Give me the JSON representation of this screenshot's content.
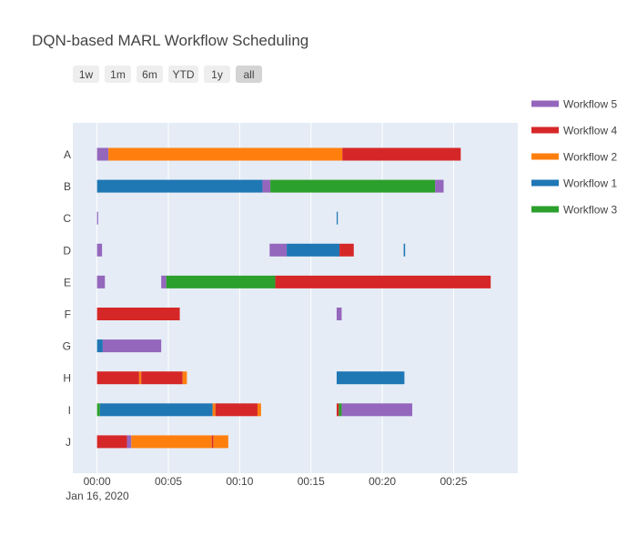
{
  "chart_data": {
    "type": "gantt",
    "title": "DQN-based MARL Workflow Scheduling",
    "date_label": "Jan 16, 2020",
    "x_unit": "minutes after 00:00 on Jan 16, 2020",
    "xlim": [
      -1.7,
      29.5
    ],
    "x_ticks": [
      {
        "value": 0,
        "label": "00:00"
      },
      {
        "value": 5,
        "label": "00:05"
      },
      {
        "value": 10,
        "label": "00:10"
      },
      {
        "value": 15,
        "label": "00:15"
      },
      {
        "value": 20,
        "label": "00:20"
      },
      {
        "value": 25,
        "label": "00:25"
      }
    ],
    "categories": [
      "A",
      "B",
      "C",
      "D",
      "E",
      "F",
      "G",
      "H",
      "I",
      "J"
    ],
    "grid": true,
    "range_selector": [
      "1w",
      "1m",
      "6m",
      "YTD",
      "1y",
      "all"
    ],
    "range_selector_active": "all",
    "legend_position": "right",
    "series": [
      {
        "name": "Workflow 5",
        "color": "#9467bd"
      },
      {
        "name": "Workflow 4",
        "color": "#d62728"
      },
      {
        "name": "Workflow 2",
        "color": "#ff7f0e"
      },
      {
        "name": "Workflow 1",
        "color": "#1f77b4"
      },
      {
        "name": "Workflow 3",
        "color": "#2ca02c"
      }
    ],
    "tasks": [
      {
        "row": "A",
        "series": "Workflow 5",
        "start": 0.0,
        "end": 0.8
      },
      {
        "row": "A",
        "series": "Workflow 2",
        "start": 0.8,
        "end": 17.2
      },
      {
        "row": "A",
        "series": "Workflow 4",
        "start": 17.2,
        "end": 25.5
      },
      {
        "row": "B",
        "series": "Workflow 1",
        "start": 0.0,
        "end": 11.6
      },
      {
        "row": "B",
        "series": "Workflow 5",
        "start": 11.6,
        "end": 12.15
      },
      {
        "row": "B",
        "series": "Workflow 3",
        "start": 12.15,
        "end": 23.7
      },
      {
        "row": "B",
        "series": "Workflow 5",
        "start": 23.7,
        "end": 24.3
      },
      {
        "row": "C",
        "series": "Workflow 5",
        "start": 0.0,
        "end": 0.08
      },
      {
        "row": "C",
        "series": "Workflow 1",
        "start": 16.8,
        "end": 16.88
      },
      {
        "row": "D",
        "series": "Workflow 5",
        "start": 0.0,
        "end": 0.35
      },
      {
        "row": "D",
        "series": "Workflow 5",
        "start": 12.1,
        "end": 13.3
      },
      {
        "row": "D",
        "series": "Workflow 1",
        "start": 13.3,
        "end": 17.0
      },
      {
        "row": "D",
        "series": "Workflow 4",
        "start": 17.0,
        "end": 18.0
      },
      {
        "row": "D",
        "series": "Workflow 1",
        "start": 21.5,
        "end": 21.6
      },
      {
        "row": "E",
        "series": "Workflow 5",
        "start": 0.0,
        "end": 0.55
      },
      {
        "row": "E",
        "series": "Workflow 5",
        "start": 4.5,
        "end": 4.85
      },
      {
        "row": "E",
        "series": "Workflow 3",
        "start": 4.85,
        "end": 12.5
      },
      {
        "row": "E",
        "series": "Workflow 4",
        "start": 12.5,
        "end": 27.6
      },
      {
        "row": "F",
        "series": "Workflow 4",
        "start": 0.0,
        "end": 5.8
      },
      {
        "row": "F",
        "series": "Workflow 5",
        "start": 16.8,
        "end": 17.15
      },
      {
        "row": "G",
        "series": "Workflow 1",
        "start": 0.0,
        "end": 0.4
      },
      {
        "row": "G",
        "series": "Workflow 5",
        "start": 0.4,
        "end": 4.5
      },
      {
        "row": "H",
        "series": "Workflow 4",
        "start": 0.0,
        "end": 2.95
      },
      {
        "row": "H",
        "series": "Workflow 2",
        "start": 2.95,
        "end": 3.1
      },
      {
        "row": "H",
        "series": "Workflow 4",
        "start": 3.1,
        "end": 6.0
      },
      {
        "row": "H",
        "series": "Workflow 2",
        "start": 6.0,
        "end": 6.3
      },
      {
        "row": "H",
        "series": "Workflow 1",
        "start": 16.8,
        "end": 21.55
      },
      {
        "row": "I",
        "series": "Workflow 3",
        "start": 0.0,
        "end": 0.2
      },
      {
        "row": "I",
        "series": "Workflow 1",
        "start": 0.2,
        "end": 8.1
      },
      {
        "row": "I",
        "series": "Workflow 2",
        "start": 8.1,
        "end": 8.3
      },
      {
        "row": "I",
        "series": "Workflow 4",
        "start": 8.3,
        "end": 11.25
      },
      {
        "row": "I",
        "series": "Workflow 2",
        "start": 11.25,
        "end": 11.5
      },
      {
        "row": "I",
        "series": "Workflow 4",
        "start": 16.8,
        "end": 16.95
      },
      {
        "row": "I",
        "series": "Workflow 3",
        "start": 16.95,
        "end": 17.15
      },
      {
        "row": "I",
        "series": "Workflow 5",
        "start": 17.15,
        "end": 22.1
      },
      {
        "row": "J",
        "series": "Workflow 4",
        "start": 0.0,
        "end": 2.1
      },
      {
        "row": "J",
        "series": "Workflow 5",
        "start": 2.1,
        "end": 2.4
      },
      {
        "row": "J",
        "series": "Workflow 2",
        "start": 2.4,
        "end": 8.05
      },
      {
        "row": "J",
        "series": "Workflow 4",
        "start": 8.05,
        "end": 8.15
      },
      {
        "row": "J",
        "series": "Workflow 2",
        "start": 8.15,
        "end": 9.2
      }
    ]
  }
}
